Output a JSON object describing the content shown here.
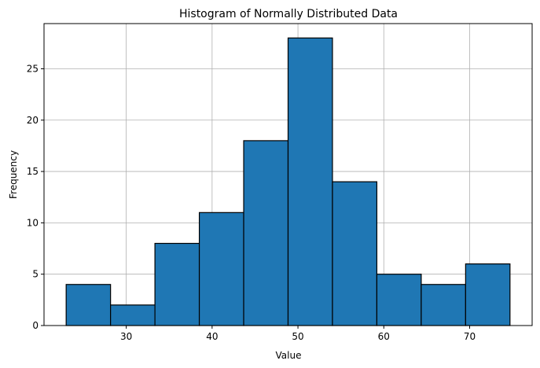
{
  "chart_data": {
    "type": "bar",
    "title": "Histogram of Normally Distributed Data",
    "xlabel": "Value",
    "ylabel": "Frequency",
    "bins": [
      {
        "x0": 23.0,
        "x1": 28.17,
        "count": 4
      },
      {
        "x0": 28.17,
        "x1": 33.34,
        "count": 2
      },
      {
        "x0": 33.34,
        "x1": 38.51,
        "count": 8
      },
      {
        "x0": 38.51,
        "x1": 43.68,
        "count": 11
      },
      {
        "x0": 43.68,
        "x1": 48.85,
        "count": 18
      },
      {
        "x0": 48.85,
        "x1": 54.02,
        "count": 28
      },
      {
        "x0": 54.02,
        "x1": 59.19,
        "count": 14
      },
      {
        "x0": 59.19,
        "x1": 64.36,
        "count": 5
      },
      {
        "x0": 64.36,
        "x1": 69.53,
        "count": 4
      },
      {
        "x0": 69.53,
        "x1": 74.7,
        "count": 6
      }
    ],
    "xlim": [
      20.42,
      77.28
    ],
    "ylim": [
      0,
      29.4
    ],
    "xticks": [
      30,
      40,
      50,
      60,
      70
    ],
    "yticks": [
      0,
      5,
      10,
      15,
      20,
      25
    ],
    "grid": true,
    "bar_color": "#1f77b4",
    "edge_color": "#000000"
  }
}
